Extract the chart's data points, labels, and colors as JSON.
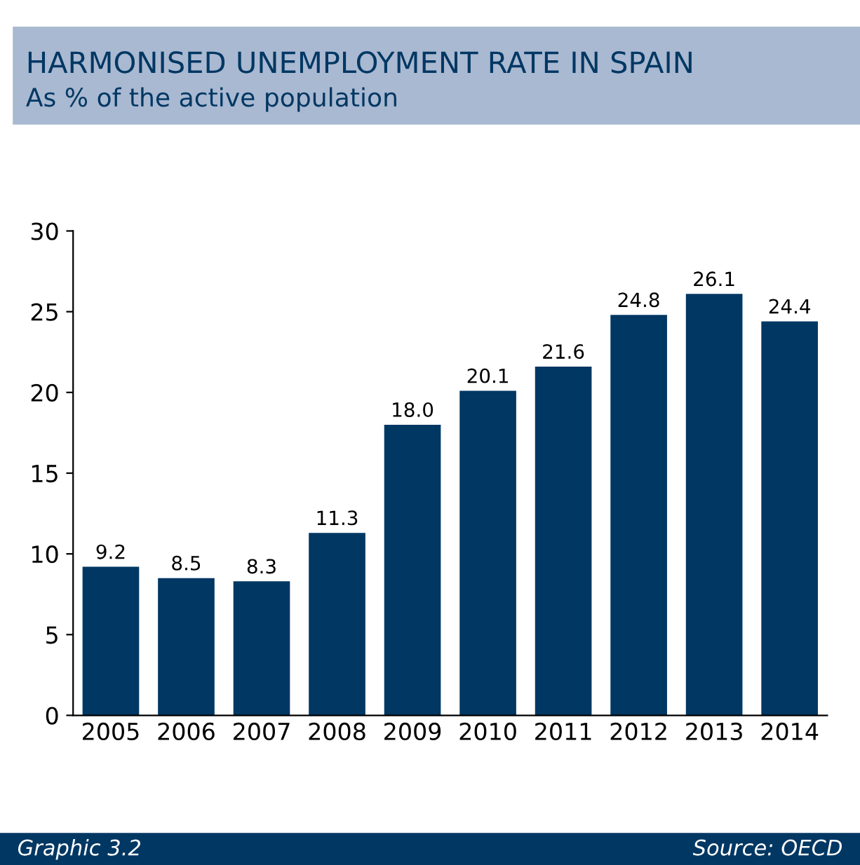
{
  "chart_data": {
    "type": "bar",
    "title": "HARMONISED UNEMPLOYMENT RATE IN SPAIN",
    "subtitle": "As % of the active population",
    "categories": [
      "2005",
      "2006",
      "2007",
      "2008",
      "2009",
      "2010",
      "2011",
      "2012",
      "2013",
      "2014"
    ],
    "values": [
      9.2,
      8.5,
      8.3,
      11.3,
      18.0,
      20.1,
      21.6,
      24.8,
      26.1,
      24.4
    ],
    "value_labels": [
      "9.2",
      "8.5",
      "8.3",
      "11.3",
      "18.0",
      "20.1",
      "21.6",
      "24.8",
      "26.1",
      "24.4"
    ],
    "color": "#003763",
    "ylim": [
      0,
      30
    ],
    "yticks": [
      0,
      5,
      10,
      15,
      20,
      25,
      30
    ],
    "grid": false,
    "annotations": [
      "Graphic 3.2",
      "Source: OECD"
    ]
  }
}
